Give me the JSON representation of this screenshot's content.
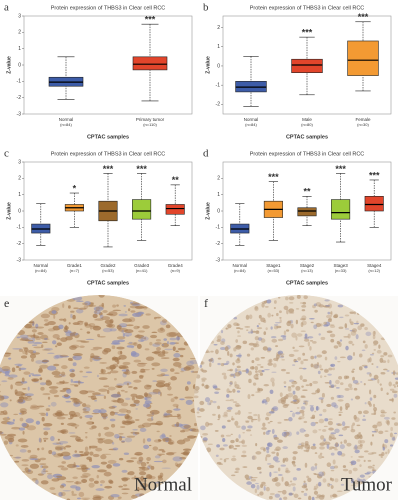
{
  "chart_data": [
    {
      "type": "box",
      "letter": "a",
      "title": "Protein expression of THBS3 in Clear cell RCC",
      "ylabel": "Z-value",
      "xlabel": "CPTAC samples",
      "categories": [
        "Normal",
        "Primary tumor"
      ],
      "sublabels": [
        "(n=84)",
        "(n=110)"
      ],
      "boxes": [
        {
          "min": -2.1,
          "q1": -1.3,
          "median": -1.05,
          "q3": -0.75,
          "max": 0.5,
          "color": "#3d5ca8"
        },
        {
          "min": -2.2,
          "q1": -0.3,
          "median": 0.05,
          "q3": 0.5,
          "max": 2.5,
          "color": "#e2452b"
        }
      ],
      "annotations": [
        null,
        "***"
      ],
      "ylim": [
        -3,
        3
      ],
      "yticks": [
        -3,
        -2,
        -1,
        0,
        1,
        2,
        3
      ]
    },
    {
      "type": "box",
      "letter": "b",
      "title": "Protein expression of THBS3 in Clear cell RCC",
      "ylabel": "Z-value",
      "xlabel": "CPTAC samples",
      "categories": [
        "Normal",
        "Male",
        "Female"
      ],
      "sublabels": [
        "(n=84)",
        "(n=80)",
        "(n=30)"
      ],
      "boxes": [
        {
          "min": -2.1,
          "q1": -1.35,
          "median": -1.1,
          "q3": -0.8,
          "max": 0.5,
          "color": "#3d5ca8"
        },
        {
          "min": -1.5,
          "q1": -0.35,
          "median": 0.05,
          "q3": 0.35,
          "max": 1.5,
          "color": "#e2452b"
        },
        {
          "min": -1.3,
          "q1": -0.5,
          "median": 0.3,
          "q3": 1.3,
          "max": 2.3,
          "color": "#f39a33"
        }
      ],
      "annotations": [
        null,
        "***",
        "***"
      ],
      "ylim": [
        -2.5,
        2.6
      ],
      "yticks": [
        -2,
        -1,
        0,
        1,
        2
      ]
    },
    {
      "type": "box",
      "letter": "c",
      "title": "Protein expression of THBS3 in Clear cell RCC",
      "ylabel": "Z-value",
      "xlabel": "CPTAC samples",
      "categories": [
        "Normal",
        "Grade1",
        "Grade2",
        "Grade3",
        "Grade4"
      ],
      "sublabels": [
        "(n=84)",
        "(n=7)",
        "(n=53)",
        "(n=41)",
        "(n=9)"
      ],
      "boxes": [
        {
          "min": -2.1,
          "q1": -1.35,
          "median": -1.1,
          "q3": -0.8,
          "max": 0.45,
          "color": "#3d5ca8"
        },
        {
          "min": -1,
          "q1": 0,
          "median": 0.2,
          "q3": 0.4,
          "max": 1.1,
          "color": "#f39a33"
        },
        {
          "min": -2.2,
          "q1": -0.6,
          "median": 0,
          "q3": 0.6,
          "max": 2.3,
          "color": "#9c6a2c"
        },
        {
          "min": -1.8,
          "q1": -0.5,
          "median": 0,
          "q3": 0.7,
          "max": 2.3,
          "color": "#9ccc3a"
        },
        {
          "min": -0.9,
          "q1": -0.2,
          "median": 0.15,
          "q3": 0.4,
          "max": 1.6,
          "color": "#e2452b"
        }
      ],
      "annotations": [
        null,
        "*",
        "***",
        "***",
        "**"
      ],
      "ylim": [
        -3,
        3
      ],
      "yticks": [
        -3,
        -2,
        -1,
        0,
        1,
        2,
        3
      ]
    },
    {
      "type": "box",
      "letter": "d",
      "title": "Protein expression of THBS3 in Clear cell RCC",
      "ylabel": "Z-value",
      "xlabel": "CPTAC samples",
      "categories": [
        "Normal",
        "Stage1",
        "Stage2",
        "Stage3",
        "Stage4"
      ],
      "sublabels": [
        "(n=84)",
        "(n=53)",
        "(n=13)",
        "(n=33)",
        "(n=12)"
      ],
      "boxes": [
        {
          "min": -2.1,
          "q1": -1.35,
          "median": -1.1,
          "q3": -0.8,
          "max": 0.45,
          "color": "#3d5ca8"
        },
        {
          "min": -1.8,
          "q1": -0.4,
          "median": 0.1,
          "q3": 0.6,
          "max": 1.8,
          "color": "#f39a33"
        },
        {
          "min": -0.9,
          "q1": -0.3,
          "median": 0,
          "q3": 0.2,
          "max": 0.9,
          "color": "#9c6a2c"
        },
        {
          "min": -1.9,
          "q1": -0.5,
          "median": -0.1,
          "q3": 0.7,
          "max": 2.3,
          "color": "#9ccc3a"
        },
        {
          "min": -1,
          "q1": 0,
          "median": 0.4,
          "q3": 0.9,
          "max": 1.9,
          "color": "#e2452b"
        }
      ],
      "annotations": [
        null,
        "***",
        "**",
        "***",
        "***"
      ],
      "ylim": [
        -3,
        3
      ],
      "yticks": [
        -3,
        -2,
        -1,
        0,
        1,
        2
      ]
    }
  ],
  "images": [
    {
      "letter": "e",
      "caption": "Normal"
    },
    {
      "letter": "f",
      "caption": "Tumor"
    }
  ]
}
